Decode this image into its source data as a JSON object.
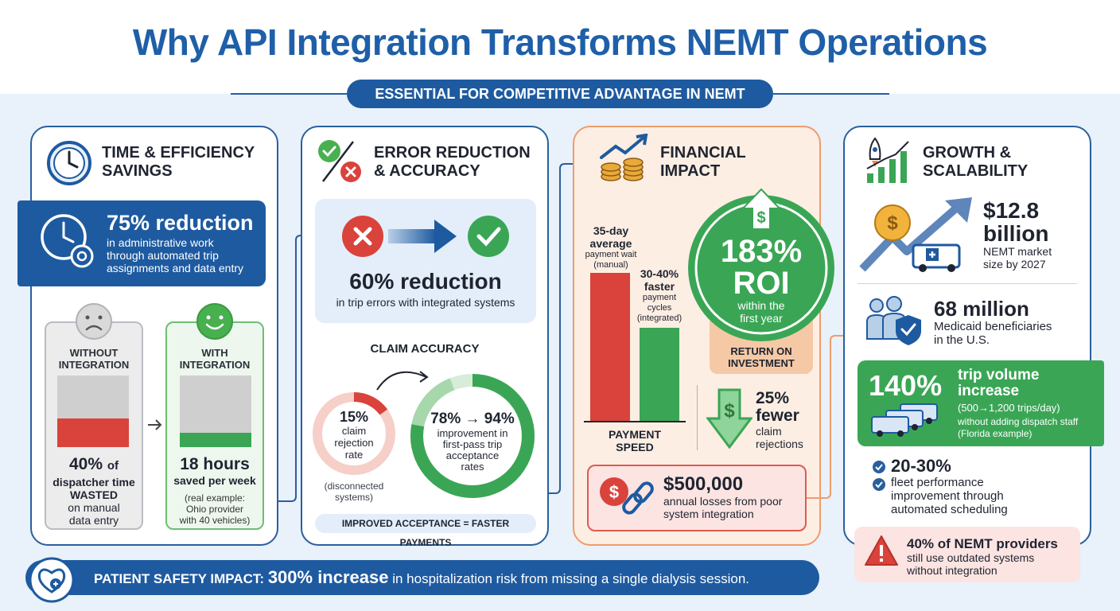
{
  "title": "Why API Integration Transforms NEMT Operations",
  "subtitle": "ESSENTIAL FOR COMPETITIVE ADVANTAGE IN NEMT",
  "colors": {
    "primary": "#1f5fa8",
    "green": "#3aa655",
    "red": "#d9433b",
    "orange": "#ef9c6b"
  },
  "time": {
    "heading": [
      "TIME & EFFICIENCY",
      "SAVINGS"
    ],
    "banner_stat": "75% reduction",
    "banner_text": [
      "in administrative work",
      "through automated trip",
      "assignments and data entry"
    ],
    "without_label": [
      "WITHOUT",
      "INTEGRATION"
    ],
    "with_label": [
      "WITH",
      "INTEGRATION"
    ],
    "without_stat": "40%",
    "without_of": "of",
    "without_text": [
      "dispatcher time",
      "WASTED",
      "on manual",
      "data entry"
    ],
    "without_fill": 0.4,
    "with_stat": "18 hours",
    "with_text": "saved per week",
    "with_note": [
      "(real example:",
      "Ohio provider",
      "with 40 vehicles)"
    ],
    "with_fill": 0.2
  },
  "error": {
    "heading": [
      "ERROR REDUCTION",
      "& ACCURACY"
    ],
    "stat": "60% reduction",
    "stat_text": "in trip errors with integrated systems",
    "claim_title": "CLAIM ACCURACY",
    "rejection_stat": "15%",
    "rejection_text": [
      "claim",
      "rejection",
      "rate"
    ],
    "rejection_value": 0.15,
    "rejection_note": [
      "(disconnected",
      "systems)"
    ],
    "accept_stat": "78% → 94%",
    "accept_text": [
      "improvement in",
      "first-pass trip",
      "acceptance",
      "rates"
    ],
    "accept_from": 0.78,
    "accept_to": 0.94,
    "footer": "IMPROVED ACCEPTANCE = FASTER PAYMENTS"
  },
  "financial": {
    "heading": [
      "FINANCIAL",
      "IMPACT"
    ],
    "bar1_title": [
      "35-day",
      "average"
    ],
    "bar1_sub": [
      "payment wait",
      "(manual)"
    ],
    "bar2_title": [
      "30-40%",
      "faster"
    ],
    "bar2_sub": [
      "payment",
      "cycles",
      "(integrated)"
    ],
    "bar_values": [
      35,
      22
    ],
    "axis_label": [
      "PAYMENT",
      "SPEED"
    ],
    "roi_stat": [
      "183%",
      "ROI"
    ],
    "roi_text": [
      "within the",
      "first year"
    ],
    "roi_label": [
      "RETURN ON",
      "INVESTMENT"
    ],
    "fewer_stat": [
      "25%",
      "fewer"
    ],
    "fewer_text": [
      "claim",
      "rejections"
    ],
    "loss_stat": "$500,000",
    "loss_text": [
      "annual losses from poor",
      "system integration"
    ]
  },
  "growth": {
    "heading": [
      "GROWTH &",
      "SCALABILITY"
    ],
    "market_stat": [
      "$12.8",
      "billion"
    ],
    "market_text": [
      "NEMT market",
      "size by 2027"
    ],
    "benef_stat": "68 million",
    "benef_text": [
      "Medicaid beneficiaries",
      "in the U.S."
    ],
    "trip_stat": "140%",
    "trip_title": [
      "trip volume",
      "increase"
    ],
    "trip_sub": "(500→1,200 trips/day)",
    "trip_note": [
      "without adding dispatch staff",
      "(Florida example)"
    ],
    "fleet_stat": "20-30%",
    "fleet_text": [
      "fleet performance",
      "improvement through",
      "automated scheduling"
    ],
    "outdated_stat": "40%",
    "outdated_of": "of NEMT providers",
    "outdated_text": [
      "still use outdated systems",
      "without integration"
    ]
  },
  "safety": {
    "label": "PATIENT SAFETY IMPACT:",
    "stat": "300% increase",
    "text": "in hospitalization risk from missing a single dialysis session."
  },
  "icons": [
    "clock-icon",
    "clock-gear-icon",
    "sad-face-icon",
    "happy-face-icon",
    "check-cross-icon",
    "chart-coins-icon",
    "rocket-chart-icon",
    "dollar-van-icon",
    "people-shield-icon",
    "van-fleet-icon",
    "warning-icon",
    "dollar-broken-link-icon",
    "heart-shield-icon",
    "dollar-up-arrow-icon",
    "dollar-down-arrow-icon"
  ]
}
